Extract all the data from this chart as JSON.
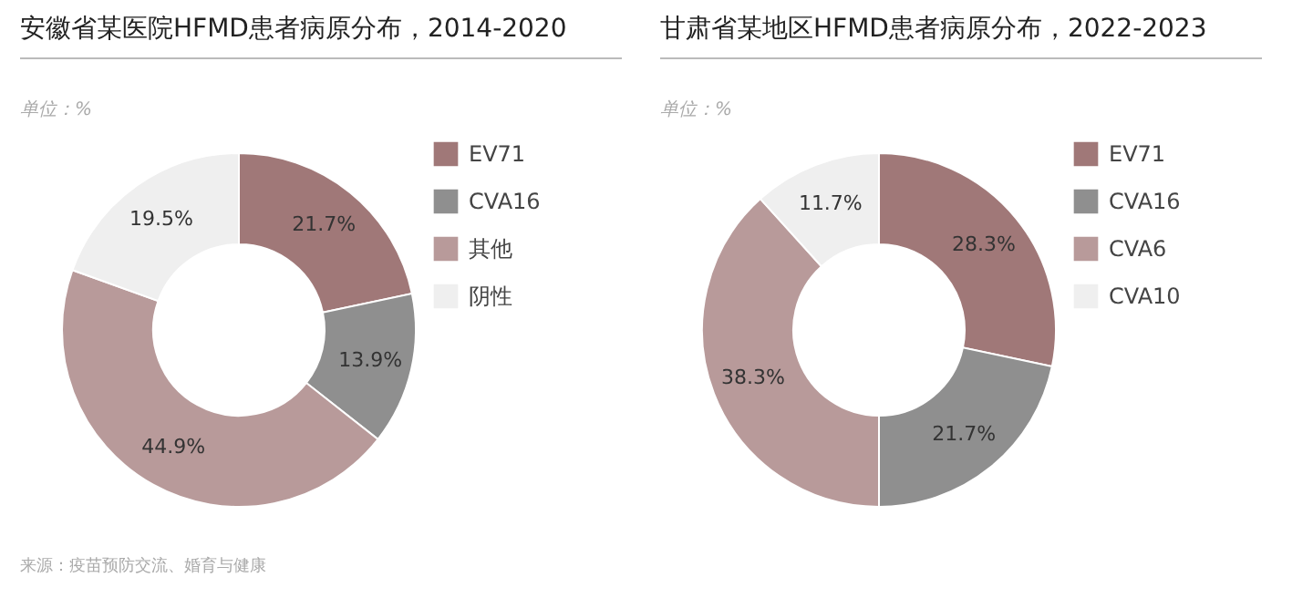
{
  "chart_data": [
    {
      "type": "donut",
      "title": "安徽省某医院HFMD患者病原分布，2014-2020",
      "subtitle": "单位：%",
      "categories": [
        "EV71",
        "CVA16",
        "其他",
        "阴性"
      ],
      "values": [
        21.7,
        13.9,
        44.9,
        19.5
      ],
      "value_labels": [
        "21.7%",
        "13.9%",
        "44.9%",
        "19.5%"
      ],
      "colors": [
        "#a07878",
        "#8f8f8f",
        "#b89a9a",
        "#efefef"
      ],
      "legend": "right",
      "annotations": [
        "来源：疫苗预防交流、婚育与健康"
      ]
    },
    {
      "type": "donut",
      "title": "甘肃省某地区HFMD患者病原分布，2022-2023",
      "subtitle": "单位：%",
      "categories": [
        "EV71",
        "CVA16",
        "CVA6",
        "CVA10"
      ],
      "values": [
        28.3,
        21.7,
        38.3,
        11.7
      ],
      "value_labels": [
        "28.3%",
        "21.7%",
        "38.3%",
        "11.7%"
      ],
      "colors": [
        "#a07878",
        "#8f8f8f",
        "#b89a9a",
        "#efefef"
      ],
      "legend": "right"
    }
  ]
}
